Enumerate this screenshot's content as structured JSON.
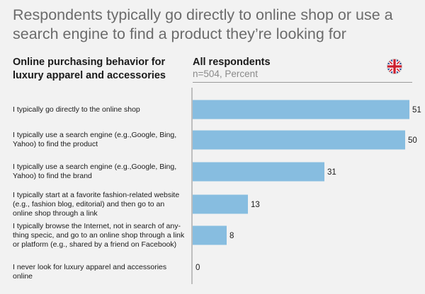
{
  "header": {
    "title": "Respondents typically go directly to online shop or use a search engine to find a product they’re looking for",
    "left_heading": "Online purchasing behavior for luxury apparel and accessories",
    "right_heading": "All respondents",
    "subheading": "n=504, Percent",
    "flag_icon": "uk-flag-icon"
  },
  "chart_data": {
    "type": "bar",
    "orientation": "horizontal",
    "categories": [
      "I typically go directly to the online shop",
      "I typically use a search engine (e.g.,Google, Bing, Yahoo)  to find the product",
      "I typically use a search engine (e.g.,Google, Bing, Yahoo) to find the brand",
      "I typically start at a favorite fashion-related website (e.g., fashion blog, editorial) and then go to an online shop through a link",
      "I typically browse the Internet, not in search of any-thing specic, and go to an online shop through a link or platform (e.g., shared by a friend on Facebook)",
      "I never look for luxury apparel and accessories online"
    ],
    "values": [
      51,
      50,
      31,
      13,
      8,
      0
    ],
    "xlim": [
      0,
      51
    ],
    "grid": false,
    "bar_color": "#87bde0"
  }
}
